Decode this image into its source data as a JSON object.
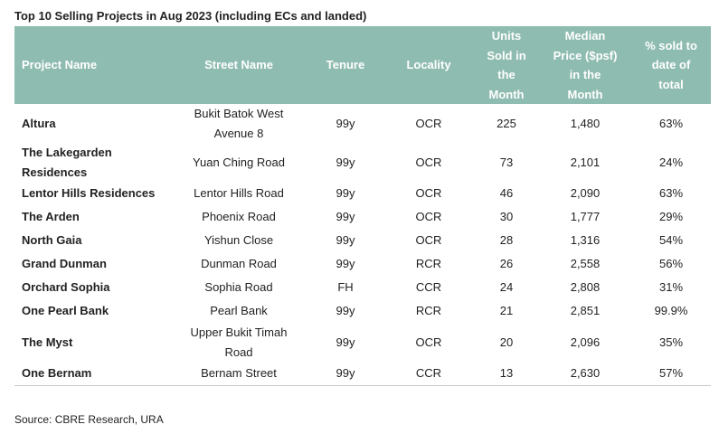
{
  "title": "Top 10 Selling Projects in Aug 2023 (including ECs and landed)",
  "headers": {
    "project": "Project Name",
    "street": "Street Name",
    "tenure": "Tenure",
    "locality": "Locality",
    "units": [
      "Units",
      "Sold in",
      "the",
      "Month"
    ],
    "median": [
      "Median",
      "Price ($psf)",
      "in the",
      "Month"
    ],
    "pct": [
      "% sold to",
      "date of",
      "total"
    ]
  },
  "rows": [
    {
      "project": [
        "Altura"
      ],
      "street": [
        "Bukit Batok West",
        "Avenue 8"
      ],
      "tenure": "99y",
      "locality": "OCR",
      "units": "225",
      "price": "1,480",
      "pct": "63%"
    },
    {
      "project": [
        "The Lakegarden",
        "Residences"
      ],
      "street": [
        "Yuan Ching Road"
      ],
      "tenure": "99y",
      "locality": "OCR",
      "units": "73",
      "price": "2,101",
      "pct": "24%"
    },
    {
      "project": [
        "Lentor Hills Residences"
      ],
      "street": [
        "Lentor Hills Road"
      ],
      "tenure": "99y",
      "locality": "OCR",
      "units": "46",
      "price": "2,090",
      "pct": "63%"
    },
    {
      "project": [
        "The Arden"
      ],
      "street": [
        "Phoenix Road"
      ],
      "tenure": "99y",
      "locality": "OCR",
      "units": "30",
      "price": "1,777",
      "pct": "29%"
    },
    {
      "project": [
        "North Gaia"
      ],
      "street": [
        "Yishun Close"
      ],
      "tenure": "99y",
      "locality": "OCR",
      "units": "28",
      "price": "1,316",
      "pct": "54%"
    },
    {
      "project": [
        "Grand Dunman"
      ],
      "street": [
        "Dunman Road"
      ],
      "tenure": "99y",
      "locality": "RCR",
      "units": "26",
      "price": "2,558",
      "pct": "56%"
    },
    {
      "project": [
        "Orchard Sophia"
      ],
      "street": [
        "Sophia Road"
      ],
      "tenure": "FH",
      "locality": "CCR",
      "units": "24",
      "price": "2,808",
      "pct": "31%"
    },
    {
      "project": [
        "One Pearl Bank"
      ],
      "street": [
        "Pearl Bank"
      ],
      "tenure": "99y",
      "locality": "RCR",
      "units": "21",
      "price": "2,851",
      "pct": "99.9%"
    },
    {
      "project": [
        "The Myst"
      ],
      "street": [
        "Upper Bukit Timah",
        "Road"
      ],
      "tenure": "99y",
      "locality": "OCR",
      "units": "20",
      "price": "2,096",
      "pct": "35%"
    },
    {
      "project": [
        "One Bernam"
      ],
      "street": [
        "Bernam Street"
      ],
      "tenure": "99y",
      "locality": "CCR",
      "units": "13",
      "price": "2,630",
      "pct": "57%"
    }
  ],
  "source": "Source: CBRE Research, URA",
  "colors": {
    "header_bg": "#8fbcb0",
    "header_text": "#ffffff"
  }
}
